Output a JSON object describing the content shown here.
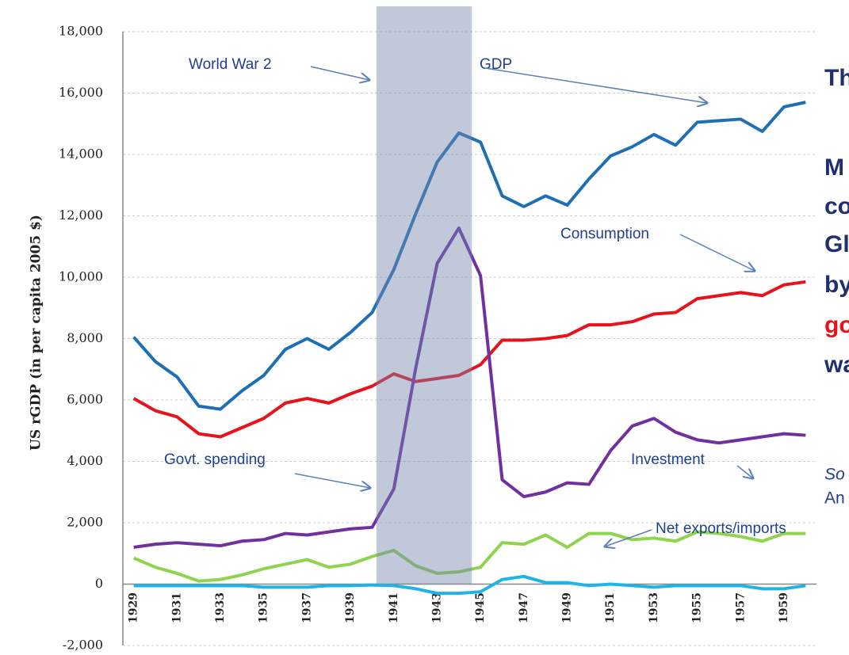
{
  "chart_data": {
    "type": "line",
    "y_label": "US rGDP (in per capita 2005 $)",
    "x": [
      1929,
      1930,
      1931,
      1932,
      1933,
      1934,
      1935,
      1936,
      1937,
      1938,
      1939,
      1940,
      1941,
      1942,
      1943,
      1944,
      1945,
      1946,
      1947,
      1948,
      1949,
      1950,
      1951,
      1952,
      1953,
      1954,
      1955,
      1956,
      1957,
      1958,
      1959,
      1960
    ],
    "xlim": [
      1928.5,
      1960.5
    ],
    "xticks": [
      1929,
      1931,
      1933,
      1935,
      1937,
      1939,
      1941,
      1943,
      1945,
      1947,
      1949,
      1951,
      1953,
      1955,
      1957,
      1959
    ],
    "ylim": [
      -2000,
      18000
    ],
    "yticks": [
      {
        "value": -2000,
        "label": "-2,000"
      },
      0,
      {
        "value": 2000,
        "label": "2,000"
      },
      {
        "value": 4000,
        "label": "4,000"
      },
      {
        "value": 6000,
        "label": "6,000"
      },
      {
        "value": 8000,
        "label": "8,000"
      },
      {
        "value": 10000,
        "label": "10,000"
      },
      {
        "value": 12000,
        "label": "12,000"
      },
      {
        "value": 14000,
        "label": "14,000"
      },
      {
        "value": 16000,
        "label": "16,000"
      },
      {
        "value": 18000,
        "label": "18,000"
      }
    ],
    "grid": true,
    "shaded_x": [
      1940.2,
      1944.6
    ],
    "series": [
      {
        "name": "GDP",
        "color": "#1f6fb4",
        "values": [
          8050,
          7250,
          6750,
          5800,
          5700,
          6300,
          6800,
          7650,
          8000,
          7650,
          8200,
          8850,
          10250,
          12050,
          13750,
          14700,
          14400,
          12650,
          12300,
          12650,
          12350,
          13200,
          13950,
          14250,
          14650,
          14300,
          15050,
          15100,
          15150,
          14750,
          15550,
          15700
        ]
      },
      {
        "name": "Consumption",
        "color": "#e8131a",
        "values": [
          6050,
          5650,
          5450,
          4900,
          4800,
          5100,
          5400,
          5900,
          6050,
          5900,
          6200,
          6450,
          6850,
          6600,
          6700,
          6800,
          7150,
          7950,
          7950,
          8000,
          8100,
          8450,
          8450,
          8550,
          8800,
          8850,
          9300,
          9400,
          9500,
          9400,
          9750,
          9850
        ]
      },
      {
        "name": "Govt. spending",
        "color": "#7030a0",
        "values": [
          1200,
          1300,
          1350,
          1300,
          1250,
          1400,
          1450,
          1650,
          1600,
          1700,
          1800,
          1850,
          3100,
          7000,
          10450,
          11600,
          10050,
          3400,
          2850,
          3000,
          3300,
          3250,
          4350,
          5150,
          5400,
          4950,
          4700,
          4600,
          4700,
          4800,
          4900,
          4850
        ]
      },
      {
        "name": "Investment",
        "color": "#8ed44f",
        "values": [
          850,
          550,
          350,
          100,
          150,
          300,
          500,
          650,
          800,
          550,
          650,
          900,
          1100,
          600,
          350,
          400,
          550,
          1350,
          1300,
          1600,
          1200,
          1650,
          1650,
          1450,
          1500,
          1400,
          1700,
          1650,
          1550,
          1400,
          1650,
          1650
        ]
      },
      {
        "name": "Net exports/imports",
        "color": "#1fb4e8",
        "values": [
          -50,
          -50,
          -50,
          -50,
          -50,
          -50,
          -100,
          -100,
          -100,
          -50,
          -50,
          -30,
          -50,
          -150,
          -300,
          -300,
          -250,
          150,
          250,
          50,
          50,
          -50,
          0,
          -50,
          -100,
          -50,
          -50,
          -50,
          -50,
          -150,
          -150,
          -50
        ]
      }
    ],
    "annotations": [
      "World War 2"
    ],
    "side_text": [
      {
        "text": "Th",
        "color": "#1f2f6f"
      },
      {
        "text": "M",
        "color": "#1f2f6f"
      },
      {
        "text": "co",
        "color": "#1f2f6f"
      },
      {
        "text": "Gl",
        "color": "#1f2f6f"
      },
      {
        "text": "by",
        "color": "#1f2f6f"
      },
      {
        "text": "go",
        "color": "#e8131a"
      },
      {
        "text": "wa",
        "color": "#1f2f6f"
      },
      {
        "text": "So",
        "color": "#1f3f8f"
      },
      {
        "text": "An",
        "color": "#1f3f8f"
      }
    ]
  }
}
